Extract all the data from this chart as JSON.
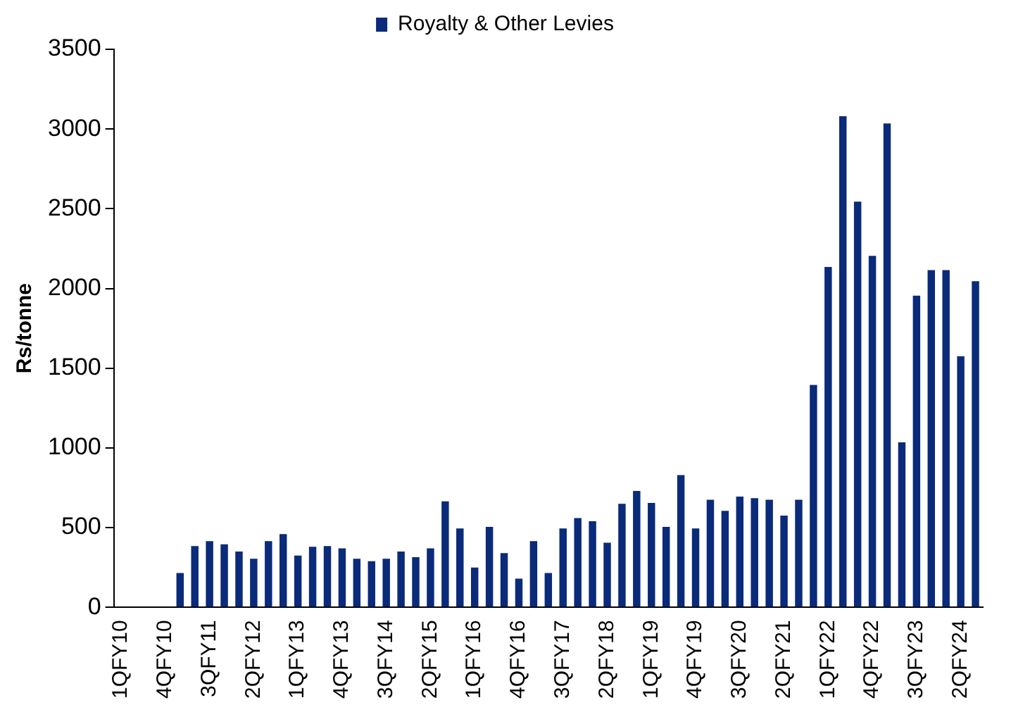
{
  "chart_data": {
    "type": "bar",
    "ylabel": "Rs/tonne",
    "categories": [
      "1QFY10",
      null,
      null,
      "4QFY10",
      null,
      null,
      "3QFY11",
      null,
      null,
      "2QFY12",
      null,
      null,
      "1QFY13",
      null,
      null,
      "4QFY13",
      null,
      null,
      "3QFY14",
      null,
      null,
      "2QFY15",
      null,
      null,
      "1QFY16",
      null,
      null,
      "4QFY16",
      null,
      null,
      "3QFY17",
      null,
      null,
      "2QFY18",
      null,
      null,
      "1QFY19",
      null,
      null,
      "4QFY19",
      null,
      null,
      "3QFY20",
      null,
      null,
      "2QFY21",
      null,
      null,
      "1QFY22",
      null,
      null,
      "4QFY22",
      null,
      null,
      "3QFY23",
      null,
      null,
      "2QFY24",
      null
    ],
    "series": [
      {
        "name": "Royalty & Other Levies",
        "color": "#0a2a7a",
        "values": [
          0,
          0,
          0,
          0,
          215,
          385,
          415,
          395,
          350,
          305,
          415,
          460,
          325,
          380,
          385,
          370,
          305,
          290,
          305,
          350,
          315,
          370,
          665,
          495,
          250,
          505,
          340,
          180,
          415,
          215,
          495,
          560,
          540,
          405,
          650,
          730,
          655,
          505,
          830,
          495,
          675,
          605,
          695,
          685,
          675,
          575,
          675,
          1395,
          2135,
          3080,
          2545,
          2205,
          3035,
          1035,
          1955,
          2115,
          2115,
          1575,
          2045
        ]
      }
    ],
    "ylim": [
      0,
      3500
    ],
    "yticks": [
      0,
      500,
      1000,
      1500,
      2000,
      2500,
      3000,
      3500
    ],
    "grid": false,
    "legend": "top"
  }
}
